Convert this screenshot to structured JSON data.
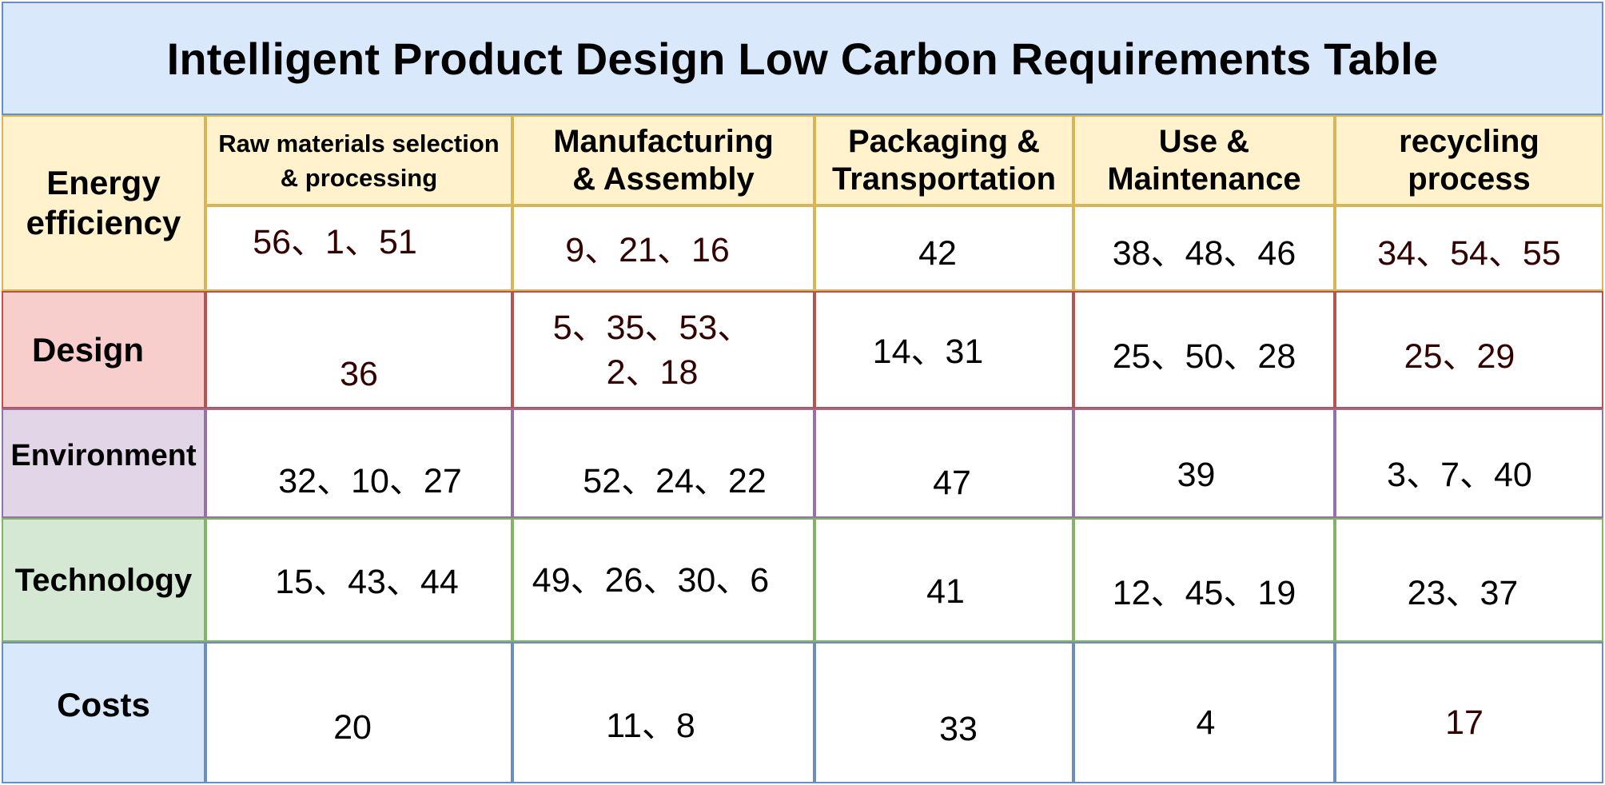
{
  "title": "Intelligent Product Design Low Carbon Requirements Table",
  "colors": {
    "title_fill": "#dae8fc",
    "title_border": "#6c8ebf",
    "energy_fill": "#fff2cc",
    "energy_border": "#d6b656",
    "design_fill": "#f8cecc",
    "design_border": "#b85450",
    "environment_fill": "#e1d5e7",
    "environment_border": "#9673a6",
    "technology_fill": "#d5e8d4",
    "technology_border": "#82b366",
    "costs_fill": "#dae8fc",
    "costs_border": "#6c8ebf",
    "dark_red_text": "#330000",
    "black_text": "#000000"
  },
  "columns": [
    "Raw materials selection & processing",
    "Manufacturing & Assembly",
    "Packaging & Transportation",
    "Use & Maintenance",
    "recycling process"
  ],
  "rows": [
    {
      "label": "Energy efficiency",
      "values": [
        "56、1、51",
        "9、21、16",
        "42",
        "38、48、46",
        "34、54、55"
      ]
    },
    {
      "label": "Design",
      "values": [
        "36",
        "5、35、53、\n2、18",
        "14、31",
        "25、50、28",
        "25、29"
      ]
    },
    {
      "label": "Environment",
      "values": [
        "32、10、27",
        "52、24、22",
        "47",
        "39",
        "3、7、40"
      ]
    },
    {
      "label": "Technology",
      "values": [
        "15、43、44",
        "49、26、30、6",
        "41",
        "12、45、19",
        "23、37"
      ]
    },
    {
      "label": "Costs",
      "values": [
        "20",
        "11、8",
        "33",
        "4",
        "17"
      ]
    }
  ]
}
